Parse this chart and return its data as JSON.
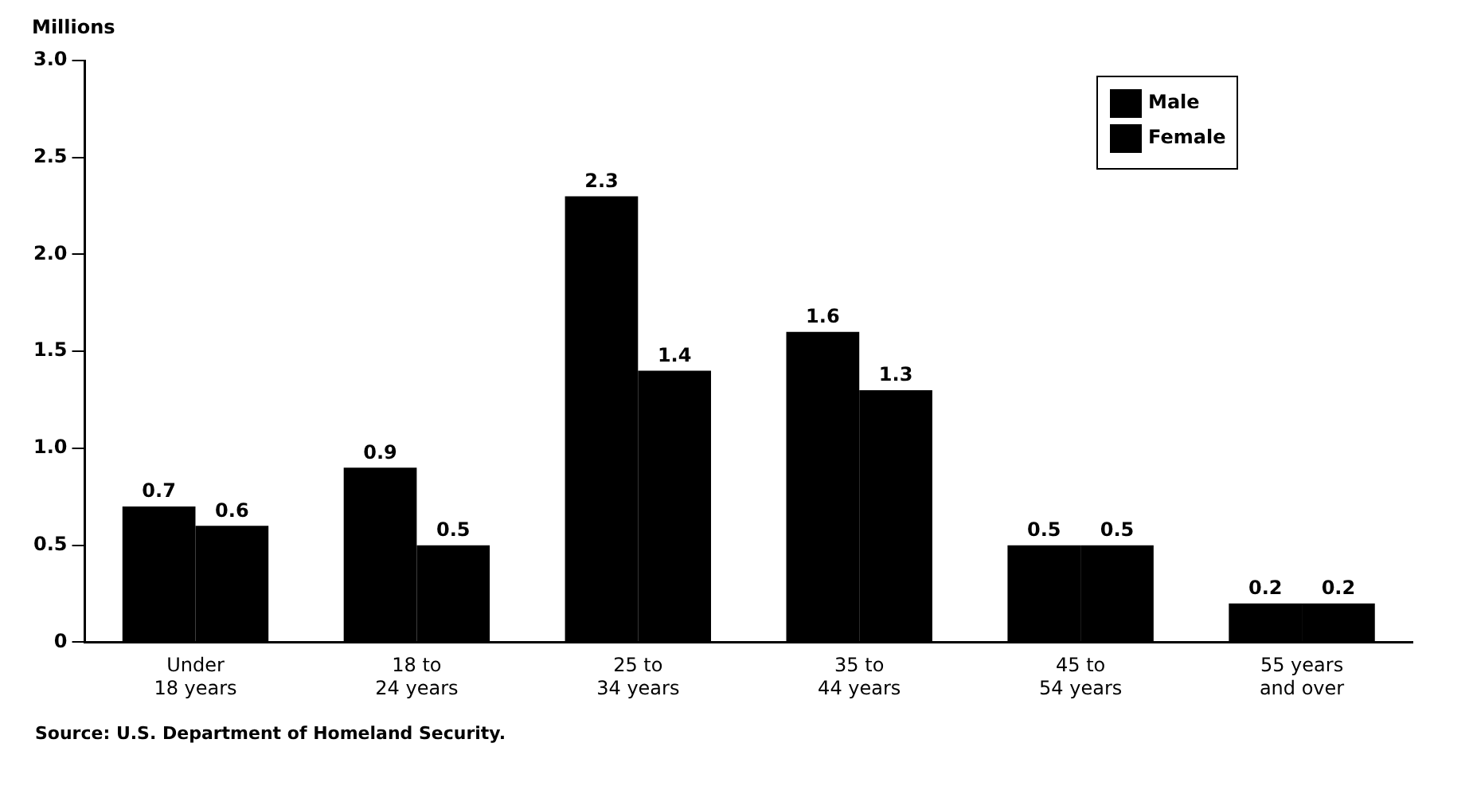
{
  "chart_data": {
    "type": "bar",
    "ylabel": "Millions",
    "categories": [
      "Under 18 years",
      "18 to 24 years",
      "25 to 34 years",
      "35 to 44 years",
      "45 to 54 years",
      "55 years and over"
    ],
    "series": [
      {
        "name": "Male",
        "color": "#000000",
        "values": [
          0.7,
          0.9,
          2.3,
          1.6,
          0.5,
          0.2
        ]
      },
      {
        "name": "Female",
        "color": "#000000",
        "values": [
          0.6,
          0.5,
          1.4,
          1.3,
          0.5,
          0.2
        ]
      }
    ],
    "ylim": [
      0,
      3
    ],
    "yticks": [
      {
        "value": 0,
        "label": "0"
      },
      {
        "value": 0.5,
        "label": "0.5"
      },
      {
        "value": 1,
        "label": "1.0"
      },
      {
        "value": 1.5,
        "label": "1.5"
      },
      {
        "value": 2,
        "label": "2.0"
      },
      {
        "value": 2.5,
        "label": "2.5"
      },
      {
        "value": 3,
        "label": "3.0"
      }
    ],
    "grid": false,
    "legend": "top right",
    "data_labels": true,
    "annotations": [
      "Source: U.S. Department of Homeland Security."
    ]
  }
}
